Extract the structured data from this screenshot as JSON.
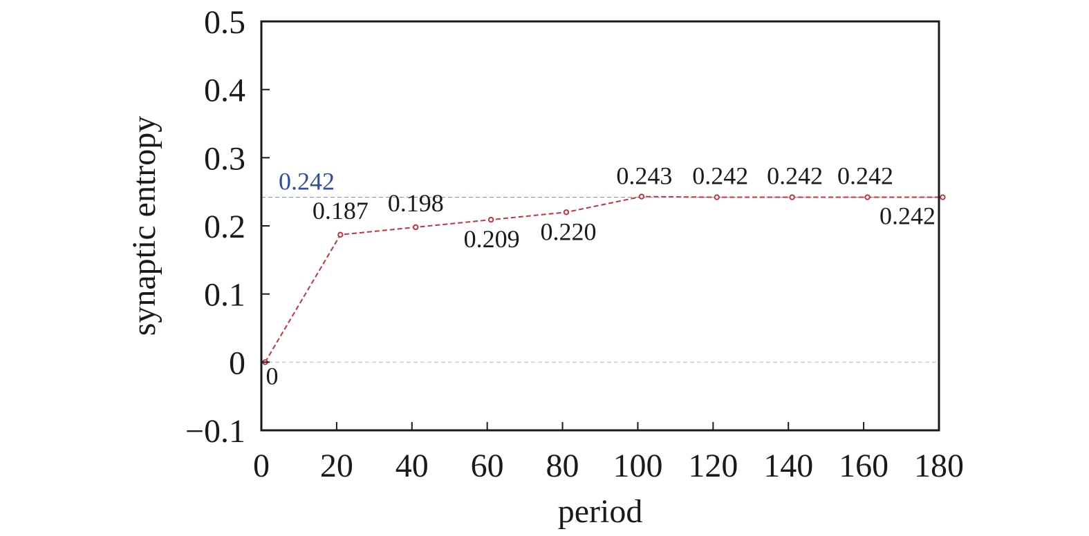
{
  "chart_data": {
    "type": "line",
    "xlabel": "period",
    "ylabel": "synaptic entropy",
    "xlim": [
      0,
      180
    ],
    "ylim": [
      -0.1,
      0.5
    ],
    "x_ticks": [
      "0",
      "20",
      "40",
      "60",
      "80",
      "100",
      "120",
      "140",
      "160",
      "180"
    ],
    "y_ticks": [
      "−0.1",
      "0",
      "0.1",
      "0.2",
      "0.3",
      "0.4",
      "0.5"
    ],
    "grid": false,
    "series": [
      {
        "x": [
          1,
          21,
          41,
          61,
          81,
          101,
          121,
          141,
          161,
          181
        ],
        "values": [
          0,
          0.187,
          0.198,
          0.209,
          0.22,
          0.243,
          0.242,
          0.242,
          0.242,
          0.242
        ],
        "labels": [
          "0",
          "0.187",
          "0.198",
          "0.209",
          "0.220",
          "0.243",
          "0.242",
          "0.242",
          "0.242",
          "0.242"
        ],
        "color": "#c8303c",
        "style": "dashed"
      }
    ],
    "reference_lines": [
      {
        "y": 0.242,
        "label": "0.242",
        "color": "#2f4f9e"
      },
      {
        "y": 0,
        "label": "",
        "color": "#9aa6c0"
      }
    ]
  }
}
